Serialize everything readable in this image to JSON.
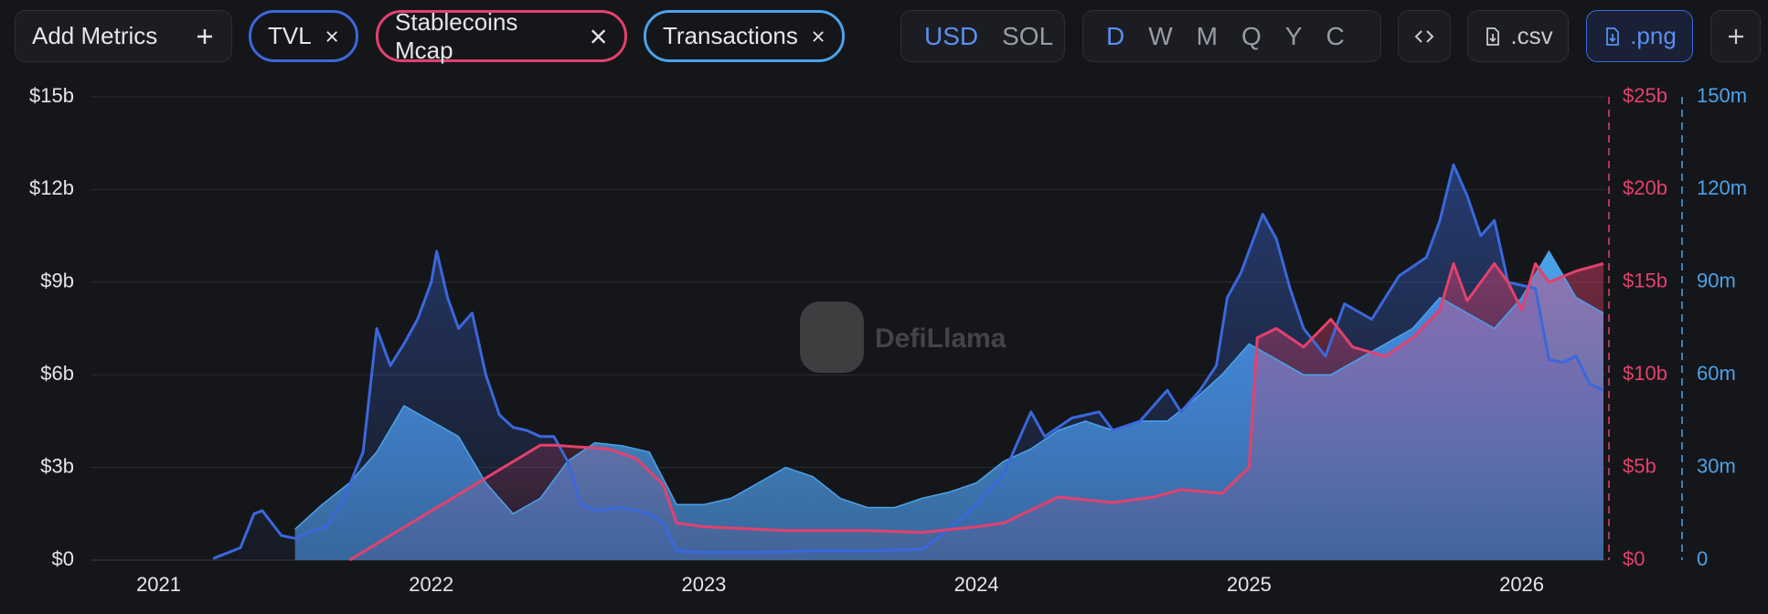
{
  "controls": {
    "add_metrics": "Add Metrics",
    "currencies": [
      "USD",
      "SOL"
    ],
    "intervals": [
      "D",
      "W",
      "M",
      "Q",
      "Y",
      "C"
    ],
    "downloads": [
      ".csv",
      ".png"
    ]
  },
  "watermark": "DefiLlama",
  "chart_data": {
    "type": "line",
    "xlim": [
      2020.75,
      2026.31
    ],
    "xticks": [
      2021,
      2022,
      2023,
      2024,
      2025,
      2026
    ],
    "ylim": [
      0,
      15
    ],
    "yticks": [
      {
        "value": 0,
        "label": "$0"
      },
      {
        "value": 3,
        "label": "$3b"
      },
      {
        "value": 6,
        "label": "$6b"
      },
      {
        "value": 9,
        "label": "$9b"
      },
      {
        "value": 12,
        "label": "$12b"
      },
      {
        "value": 15,
        "label": "$15b"
      }
    ],
    "y2lim": [
      0,
      25
    ],
    "y2ticks": [
      {
        "value": 0,
        "label": "$0"
      },
      {
        "value": 5,
        "label": "$5b"
      },
      {
        "value": 10,
        "label": "$10b"
      },
      {
        "value": 15,
        "label": "$15b"
      },
      {
        "value": 20,
        "label": "$20b"
      },
      {
        "value": 25,
        "label": "$25b"
      }
    ],
    "y3lim": [
      0,
      150
    ],
    "y3ticks": [
      0,
      {
        "value": 30,
        "label": "30m"
      },
      {
        "value": 60,
        "label": "60m"
      },
      {
        "value": 90,
        "label": "90m"
      },
      {
        "value": 120,
        "label": "120m"
      },
      {
        "value": 150,
        "label": "150m"
      }
    ],
    "grid": true,
    "series": [
      {
        "name": "TVL",
        "color": "#3a68dc",
        "axis": "y",
        "x": [
          2021.2,
          2021.3,
          2021.35,
          2021.38,
          2021.45,
          2021.5,
          2021.55,
          2021.62,
          2021.68,
          2021.75,
          2021.8,
          2021.85,
          2021.9,
          2021.95,
          2022.0,
          2022.02,
          2022.06,
          2022.1,
          2022.15,
          2022.2,
          2022.25,
          2022.3,
          2022.35,
          2022.4,
          2022.45,
          2022.5,
          2022.55,
          2022.6,
          2022.7,
          2022.8,
          2022.85,
          2022.9,
          2023.0,
          2023.2,
          2023.4,
          2023.6,
          2023.8,
          2023.9,
          2024.0,
          2024.1,
          2024.2,
          2024.25,
          2024.35,
          2024.45,
          2024.5,
          2024.6,
          2024.7,
          2024.75,
          2024.82,
          2024.88,
          2024.92,
          2024.97,
          2025.05,
          2025.1,
          2025.15,
          2025.2,
          2025.28,
          2025.35,
          2025.45,
          2025.55,
          2025.65,
          2025.7,
          2025.75,
          2025.8,
          2025.85,
          2025.9,
          2025.95,
          2026.05,
          2026.1,
          2026.15,
          2026.2,
          2026.25,
          2026.3
        ],
        "values": [
          0.05,
          0.4,
          1.5,
          1.6,
          0.8,
          0.7,
          0.9,
          1.1,
          2.0,
          3.5,
          7.5,
          6.3,
          7.0,
          7.8,
          9.0,
          10.0,
          8.5,
          7.5,
          8.0,
          6.0,
          4.7,
          4.3,
          4.2,
          4.0,
          4.0,
          3.2,
          1.8,
          1.6,
          1.7,
          1.5,
          1.2,
          0.3,
          0.25,
          0.25,
          0.3,
          0.3,
          0.35,
          1.0,
          1.8,
          2.8,
          4.8,
          4.0,
          4.6,
          4.8,
          4.2,
          4.5,
          5.5,
          4.8,
          5.5,
          6.3,
          8.5,
          9.3,
          11.2,
          10.4,
          8.8,
          7.5,
          6.6,
          8.3,
          7.8,
          9.2,
          9.8,
          11.0,
          12.8,
          11.8,
          10.5,
          11.0,
          9.0,
          8.8,
          6.5,
          6.4,
          6.6,
          5.7,
          5.5
        ]
      },
      {
        "name": "Stablecoins Mcap",
        "color": "#e3416d",
        "axis": "y2",
        "x": [
          2021.7,
          2022.4,
          2022.45,
          2022.65,
          2022.75,
          2022.85,
          2022.9,
          2023.0,
          2023.3,
          2023.6,
          2023.8,
          2024.0,
          2024.1,
          2024.3,
          2024.5,
          2024.65,
          2024.75,
          2024.9,
          2025.0,
          2025.03,
          2025.1,
          2025.2,
          2025.3,
          2025.38,
          2025.5,
          2025.6,
          2025.7,
          2025.75,
          2025.8,
          2025.9,
          2025.95,
          2026.0,
          2026.05,
          2026.1,
          2026.2,
          2026.3
        ],
        "values": [
          0,
          6.2,
          6.2,
          6.0,
          5.5,
          4.1,
          2.0,
          1.8,
          1.6,
          1.6,
          1.5,
          1.8,
          2.0,
          3.4,
          3.1,
          3.4,
          3.8,
          3.6,
          5.0,
          12.0,
          12.5,
          11.5,
          13.0,
          11.5,
          11.0,
          12.0,
          13.5,
          16.0,
          14.0,
          16.0,
          15.0,
          13.5,
          16.0,
          15.0,
          15.6,
          16.0
        ]
      },
      {
        "name": "Transactions",
        "color": "#4ba2ea",
        "axis": "y3",
        "x": [
          2021.5,
          2021.6,
          2021.7,
          2021.8,
          2021.9,
          2022.0,
          2022.1,
          2022.2,
          2022.3,
          2022.4,
          2022.5,
          2022.6,
          2022.7,
          2022.8,
          2022.9,
          2023.0,
          2023.1,
          2023.2,
          2023.3,
          2023.4,
          2023.5,
          2023.6,
          2023.7,
          2023.8,
          2023.9,
          2024.0,
          2024.1,
          2024.2,
          2024.3,
          2024.4,
          2024.5,
          2024.6,
          2024.7,
          2024.8,
          2024.9,
          2025.0,
          2025.1,
          2025.2,
          2025.3,
          2025.4,
          2025.5,
          2025.6,
          2025.7,
          2025.8,
          2025.9,
          2026.0,
          2026.1,
          2026.2,
          2026.3
        ],
        "values": [
          10,
          18,
          25,
          35,
          50,
          45,
          40,
          25,
          15,
          20,
          32,
          38,
          37,
          35,
          18,
          18,
          20,
          25,
          30,
          27,
          20,
          17,
          17,
          20,
          22,
          25,
          32,
          36,
          42,
          45,
          42,
          45,
          45,
          52,
          60,
          70,
          65,
          60,
          60,
          65,
          70,
          75,
          85,
          80,
          75,
          85,
          100,
          85,
          80
        ]
      }
    ]
  }
}
